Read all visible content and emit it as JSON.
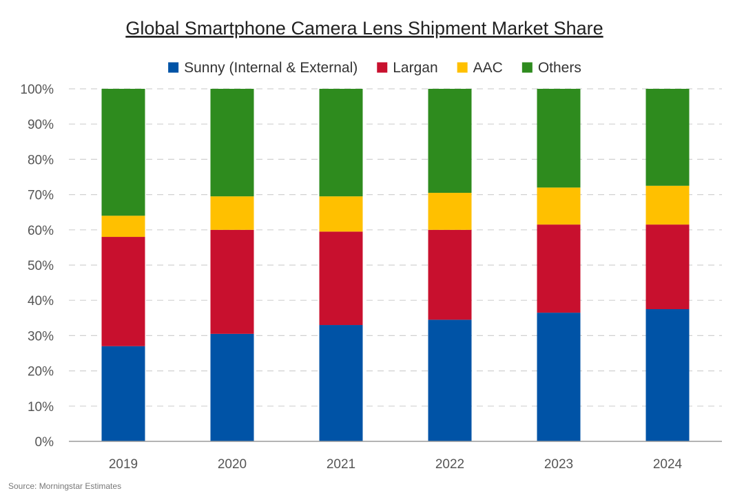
{
  "chart_data": {
    "type": "bar",
    "stacked": true,
    "title": "Global Smartphone Camera Lens Shipment Market Share",
    "categories": [
      "2019",
      "2020",
      "2021",
      "2022",
      "2023",
      "2024"
    ],
    "series": [
      {
        "name": "Sunny (Internal & External)",
        "color": "#0053a6",
        "values": [
          27,
          30.5,
          33,
          34.5,
          36.5,
          37.5
        ]
      },
      {
        "name": "Largan",
        "color": "#c8102e",
        "values": [
          31,
          29.5,
          26.5,
          25.5,
          25,
          24
        ]
      },
      {
        "name": "AAC",
        "color": "#ffc000",
        "values": [
          6,
          9.5,
          10,
          10.5,
          10.5,
          11
        ]
      },
      {
        "name": "Others",
        "color": "#2e8b1e",
        "values": [
          36,
          30.5,
          30.5,
          29.5,
          28,
          27.5
        ]
      }
    ],
    "y_ticks": [
      "0%",
      "10%",
      "20%",
      "30%",
      "40%",
      "50%",
      "60%",
      "70%",
      "80%",
      "90%",
      "100%"
    ],
    "ylim": [
      0,
      100
    ],
    "grid": true,
    "legend_position": "top",
    "xlabel": "",
    "ylabel": ""
  },
  "source": "Source: Morningstar Estimates"
}
